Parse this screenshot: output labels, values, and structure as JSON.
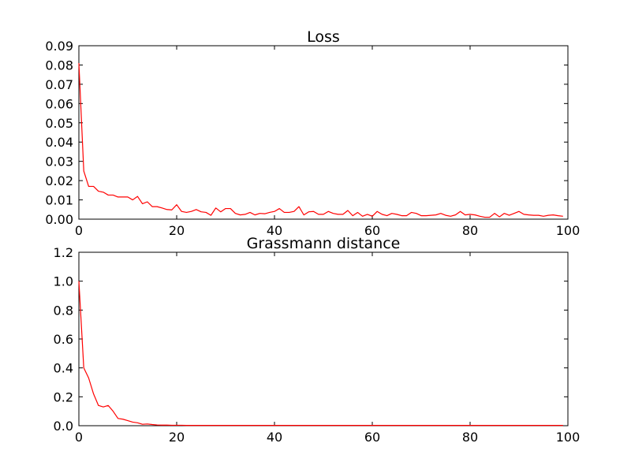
{
  "chart_data": [
    {
      "type": "line",
      "title": "Loss",
      "xlim": [
        0,
        100
      ],
      "ylim": [
        0,
        0.09
      ],
      "xticks": [
        "0",
        "20",
        "40",
        "60",
        "80",
        "100"
      ],
      "yticks": [
        "0.00",
        "0.01",
        "0.02",
        "0.03",
        "0.04",
        "0.05",
        "0.06",
        "0.07",
        "0.08",
        "0.09"
      ],
      "grid": false,
      "series": [
        {
          "color": "#ff0000",
          "x": [
            0,
            1,
            2,
            3,
            4,
            5,
            6,
            7,
            8,
            9,
            10,
            11,
            12,
            13,
            14,
            15,
            16,
            17,
            18,
            19,
            20,
            21,
            22,
            23,
            24,
            25,
            26,
            27,
            28,
            29,
            30,
            31,
            32,
            33,
            34,
            35,
            36,
            37,
            38,
            39,
            40,
            41,
            42,
            43,
            44,
            45,
            46,
            47,
            48,
            49,
            50,
            51,
            52,
            53,
            54,
            55,
            56,
            57,
            58,
            59,
            60,
            61,
            62,
            63,
            64,
            65,
            66,
            67,
            68,
            69,
            70,
            71,
            72,
            73,
            74,
            75,
            76,
            77,
            78,
            79,
            80,
            81,
            82,
            83,
            84,
            85,
            86,
            87,
            88,
            89,
            90,
            91,
            92,
            93,
            94,
            95,
            96,
            97,
            98,
            99
          ],
          "y": [
            0.081,
            0.025,
            0.017,
            0.017,
            0.0145,
            0.014,
            0.0125,
            0.0125,
            0.0115,
            0.0115,
            0.0115,
            0.01,
            0.0118,
            0.008,
            0.009,
            0.0065,
            0.0065,
            0.0058,
            0.005,
            0.0048,
            0.0075,
            0.004,
            0.0035,
            0.004,
            0.005,
            0.0038,
            0.0035,
            0.002,
            0.0058,
            0.0038,
            0.0055,
            0.0055,
            0.003,
            0.0022,
            0.0025,
            0.0035,
            0.0022,
            0.003,
            0.0028,
            0.0035,
            0.004,
            0.0055,
            0.0035,
            0.0035,
            0.004,
            0.0065,
            0.0022,
            0.0038,
            0.004,
            0.0025,
            0.0025,
            0.004,
            0.003,
            0.0025,
            0.0025,
            0.0045,
            0.0018,
            0.0035,
            0.0015,
            0.0025,
            0.0015,
            0.004,
            0.0025,
            0.0018,
            0.003,
            0.0025,
            0.0018,
            0.0018,
            0.0035,
            0.003,
            0.0018,
            0.0018,
            0.002,
            0.0022,
            0.003,
            0.002,
            0.0015,
            0.0022,
            0.004,
            0.0022,
            0.0025,
            0.0022,
            0.0015,
            0.001,
            0.001,
            0.003,
            0.0012,
            0.003,
            0.002,
            0.003,
            0.004,
            0.0025,
            0.0022,
            0.002,
            0.002,
            0.0015,
            0.002,
            0.0022,
            0.0018,
            0.0015
          ]
        }
      ]
    },
    {
      "type": "line",
      "title": "Grassmann distance",
      "xlim": [
        0,
        100
      ],
      "ylim": [
        0,
        1.2
      ],
      "xticks": [
        "0",
        "20",
        "40",
        "60",
        "80",
        "100"
      ],
      "yticks": [
        "0.0",
        "0.2",
        "0.4",
        "0.6",
        "0.8",
        "1.0",
        "1.2"
      ],
      "grid": false,
      "series": [
        {
          "color": "#ff0000",
          "x": [
            0,
            1,
            2,
            3,
            4,
            5,
            6,
            7,
            8,
            9,
            10,
            11,
            12,
            13,
            14,
            15,
            16,
            17,
            18,
            19,
            20,
            21,
            22,
            23,
            24,
            25,
            26,
            27,
            28,
            29,
            30,
            31,
            32,
            33,
            34,
            35,
            36,
            37,
            38,
            39,
            40,
            41,
            42,
            43,
            44,
            45,
            46,
            47,
            48,
            49,
            50,
            51,
            52,
            53,
            54,
            55,
            56,
            57,
            58,
            59,
            60,
            61,
            62,
            63,
            64,
            65,
            66,
            67,
            68,
            69,
            70,
            71,
            72,
            73,
            74,
            75,
            76,
            77,
            78,
            79,
            80,
            81,
            82,
            83,
            84,
            85,
            86,
            87,
            88,
            89,
            90,
            91,
            92,
            93,
            94,
            95,
            96,
            97,
            98,
            99
          ],
          "y": [
            1.0,
            0.4,
            0.33,
            0.22,
            0.14,
            0.13,
            0.14,
            0.1,
            0.05,
            0.045,
            0.035,
            0.025,
            0.02,
            0.01,
            0.012,
            0.008,
            0.005,
            0.004,
            0.004,
            0.003,
            0.003,
            0.003,
            0.002,
            0.002,
            0.002,
            0.002,
            0.002,
            0.002,
            0.002,
            0.002,
            0.002,
            0.002,
            0.002,
            0.002,
            0.002,
            0.002,
            0.002,
            0.002,
            0.002,
            0.002,
            0.002,
            0.002,
            0.002,
            0.002,
            0.002,
            0.002,
            0.002,
            0.002,
            0.002,
            0.002,
            0.002,
            0.002,
            0.002,
            0.002,
            0.002,
            0.002,
            0.002,
            0.002,
            0.002,
            0.002,
            0.002,
            0.002,
            0.002,
            0.002,
            0.002,
            0.002,
            0.002,
            0.002,
            0.002,
            0.002,
            0.002,
            0.002,
            0.002,
            0.002,
            0.002,
            0.002,
            0.002,
            0.002,
            0.002,
            0.002,
            0.002,
            0.002,
            0.002,
            0.002,
            0.002,
            0.002,
            0.002,
            0.002,
            0.002,
            0.002,
            0.002,
            0.002,
            0.002,
            0.002,
            0.002,
            0.002,
            0.002,
            0.002,
            0.002,
            0.002
          ]
        }
      ]
    }
  ]
}
